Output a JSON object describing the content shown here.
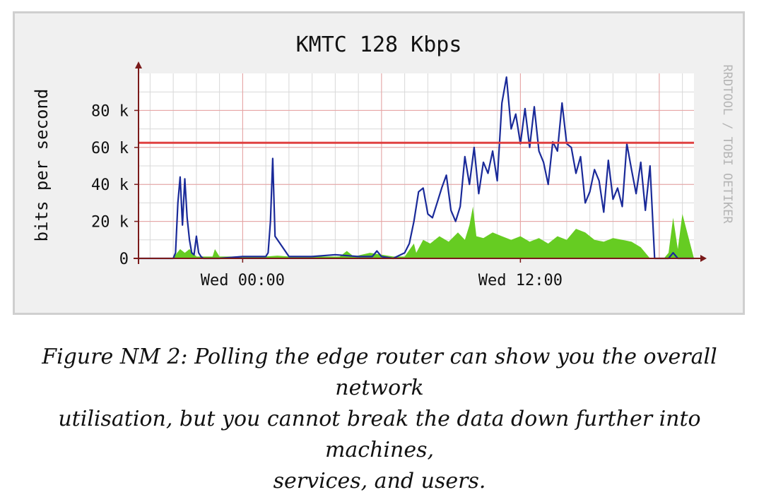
{
  "chart_data": {
    "type": "area",
    "title": "KMTC 128 Kbps",
    "ylabel": "bits per second",
    "watermark": "RRDTOOL / TOBI OETIKER",
    "yticks": [
      {
        "value": 0,
        "label": "0"
      },
      {
        "value": 20000,
        "label": "20 k"
      },
      {
        "value": 40000,
        "label": "40 k"
      },
      {
        "value": 60000,
        "label": "60 k"
      },
      {
        "value": 80000,
        "label": "80 k"
      }
    ],
    "ylim": [
      0,
      100000
    ],
    "xlim": [
      -4.5,
      19.5
    ],
    "x_unit": "hours relative to Wed 00:00",
    "xticks": [
      {
        "value": 0,
        "label": "Wed 00:00"
      },
      {
        "value": 12,
        "label": "Wed 12:00"
      }
    ],
    "x_major_gridlines": [
      0,
      6,
      12,
      18
    ],
    "threshold": {
      "value": 62500,
      "color": "#e04040"
    },
    "colors": {
      "outbound": "#66cc22",
      "inbound": "#1a2a99",
      "grid_minor": "#d8d8d8",
      "grid_major": "#e8a0a0",
      "axis": "#7a1a1a"
    },
    "series": [
      {
        "key": "outbound",
        "style": "area",
        "x": [
          -4.5,
          -3.0,
          -2.9,
          -2.7,
          -2.5,
          -2.3,
          -2.0,
          -1.3,
          -1.2,
          -1.0,
          0,
          1.0,
          1.5,
          2.0,
          3.0,
          4.2,
          4.5,
          4.8,
          5.5,
          6.5,
          7.0,
          7.4,
          7.5,
          7.8,
          8.1,
          8.5,
          8.9,
          9.3,
          9.6,
          9.8,
          9.95,
          10.1,
          10.4,
          10.8,
          11.2,
          11.6,
          12.0,
          12.4,
          12.8,
          13.2,
          13.6,
          14.0,
          14.4,
          14.8,
          15.2,
          15.6,
          16.0,
          16.4,
          16.8,
          17.2,
          17.6,
          18.0,
          18.2,
          18.4,
          18.6,
          18.8,
          19.0,
          19.5
        ],
        "y": [
          0,
          0,
          2000,
          5000,
          3000,
          5000,
          1000,
          1000,
          5000,
          1000,
          1000,
          1000,
          1500,
          1000,
          1000,
          1000,
          4000,
          1000,
          3000,
          1000,
          1000,
          8000,
          3000,
          10000,
          8000,
          12000,
          9000,
          14000,
          10000,
          18000,
          28000,
          12000,
          11000,
          14000,
          12000,
          10000,
          12000,
          9000,
          11000,
          8000,
          12000,
          10000,
          16000,
          14000,
          10000,
          9000,
          11000,
          10000,
          9000,
          6000,
          0,
          0,
          0,
          3000,
          22000,
          5000,
          24000,
          0
        ]
      },
      {
        "key": "inbound",
        "style": "line",
        "x": [
          -4.5,
          -3.0,
          -2.9,
          -2.8,
          -2.7,
          -2.6,
          -2.5,
          -2.4,
          -2.3,
          -2.2,
          -2.1,
          -2.0,
          -1.9,
          -1.8,
          -1.7,
          -1.6,
          -1.0,
          0,
          1.0,
          1.1,
          1.2,
          1.3,
          1.4,
          2.0,
          3.0,
          4.0,
          5.0,
          5.6,
          5.8,
          6.0,
          6.5,
          7.0,
          7.2,
          7.4,
          7.6,
          7.8,
          8.0,
          8.2,
          8.4,
          8.6,
          8.8,
          9.0,
          9.2,
          9.4,
          9.6,
          9.8,
          10.0,
          10.2,
          10.4,
          10.6,
          10.8,
          11.0,
          11.2,
          11.4,
          11.6,
          11.8,
          12.0,
          12.2,
          12.4,
          12.6,
          12.8,
          13.0,
          13.2,
          13.4,
          13.6,
          13.8,
          14.0,
          14.2,
          14.4,
          14.6,
          14.8,
          15.0,
          15.2,
          15.4,
          15.6,
          15.8,
          16.0,
          16.2,
          16.4,
          16.6,
          16.8,
          17.0,
          17.2,
          17.4,
          17.6,
          17.8,
          18.0,
          18.2,
          18.4,
          18.6,
          18.8,
          19.0,
          19.5
        ],
        "y": [
          0,
          0,
          3000,
          30000,
          44000,
          18000,
          43000,
          22000,
          10000,
          3000,
          2000,
          12000,
          3000,
          1000,
          0,
          0,
          0,
          1000,
          1000,
          3000,
          20000,
          54000,
          12000,
          1000,
          1000,
          2000,
          1000,
          1000,
          4000,
          1000,
          0,
          3000,
          8000,
          20000,
          36000,
          38000,
          24000,
          22000,
          30000,
          38000,
          45000,
          26000,
          20000,
          28000,
          55000,
          40000,
          60000,
          35000,
          52000,
          46000,
          58000,
          42000,
          84000,
          98000,
          70000,
          78000,
          62000,
          81000,
          60000,
          82000,
          58000,
          52000,
          40000,
          63000,
          58000,
          84000,
          62000,
          60000,
          46000,
          55000,
          30000,
          36000,
          48000,
          42000,
          25000,
          53000,
          32000,
          38000,
          28000,
          62000,
          48000,
          35000,
          52000,
          26000,
          50000,
          0,
          0,
          0,
          0,
          3000,
          0,
          0,
          0
        ]
      }
    ]
  },
  "caption": {
    "lines": [
      "Figure NM 2: Polling the edge router can show you the overall network",
      "utilisation, but you cannot break the data down further into machines,",
      "services, and users."
    ]
  }
}
